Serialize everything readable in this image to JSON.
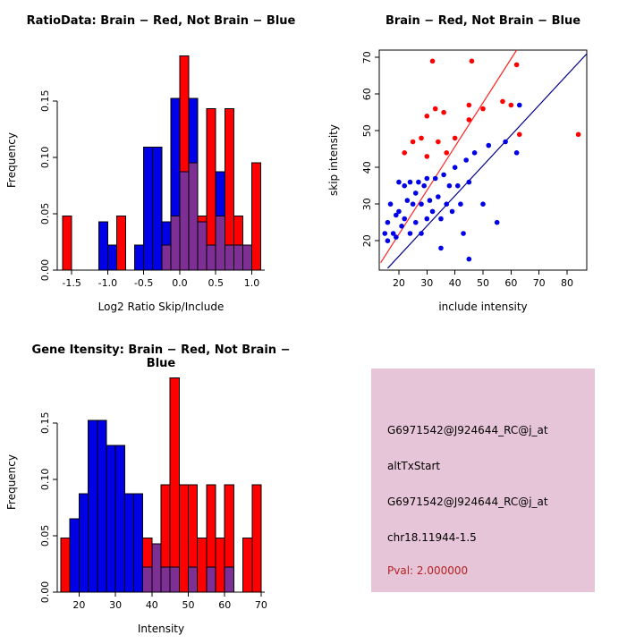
{
  "colors": {
    "red": "#FF0000",
    "blue": "#0000E6",
    "overlap_purple": "#7D2F93",
    "scatter_line_red": "#FF2222",
    "scatter_line_blue": "#00008B",
    "info_bg": "#E7C5D8",
    "pval_color": "#B22222",
    "axis": "#000000"
  },
  "chart_data": [
    {
      "type": "bar",
      "subtype": "overlaid-histogram",
      "title": "RatioData: Brain − Red, Not Brain − Blue",
      "xlabel": "Log2 Ratio Skip/Include",
      "ylabel": "Frequency",
      "bin_start": -1.625,
      "bin_width": 0.125,
      "series": [
        {
          "name": "Brain (red)",
          "values": [
            0.048,
            0,
            0,
            0,
            0,
            0,
            0.048,
            0,
            0,
            0,
            0,
            0.022,
            0.048,
            0.19,
            0.095,
            0.048,
            0.143,
            0.048,
            0.143,
            0.048,
            0.022,
            0.095
          ]
        },
        {
          "name": "Not Brain (blue)",
          "values": [
            0,
            0,
            0,
            0,
            0.043,
            0.022,
            0,
            0,
            0.022,
            0.109,
            0.109,
            0.043,
            0.152,
            0.087,
            0.152,
            0.043,
            0.022,
            0.087,
            0.022,
            0.022,
            0.022,
            0
          ]
        }
      ],
      "xticks": [
        -1.5,
        -1,
        -0.5,
        0,
        0.5,
        1
      ],
      "xtick_labels": [
        "-1.5",
        "-1.0",
        "-0.5",
        "0.0",
        "0.5",
        "1.0"
      ],
      "yticks": [
        0,
        0.05,
        0.1,
        0.15
      ],
      "ytick_labels": [
        "0.00",
        "0.05",
        "0.10",
        "0.15"
      ],
      "xlim": [
        -1.7,
        1.18
      ],
      "ylim": [
        0,
        0.195
      ],
      "grid": false
    },
    {
      "type": "scatter",
      "title": "Brain − Red, Not Brain − Blue",
      "xlabel": "include intensity",
      "ylabel": "skip intensity",
      "series": [
        {
          "name": "Brain (red)",
          "points": [
            [
              32,
              69
            ],
            [
              46,
              69
            ],
            [
              62,
              68
            ],
            [
              57,
              58
            ],
            [
              60,
              57
            ],
            [
              45,
              57
            ],
            [
              33,
              56
            ],
            [
              36,
              55
            ],
            [
              30,
              54
            ],
            [
              50,
              56
            ],
            [
              25,
              47
            ],
            [
              28,
              48
            ],
            [
              34,
              47
            ],
            [
              40,
              48
            ],
            [
              63,
              49
            ],
            [
              84,
              49
            ],
            [
              22,
              44
            ],
            [
              30,
              43
            ],
            [
              37,
              44
            ],
            [
              45,
              53
            ]
          ]
        },
        {
          "name": "Not Brain (blue)",
          "points": [
            [
              15,
              22
            ],
            [
              16,
              20
            ],
            [
              16,
              25
            ],
            [
              17,
              30
            ],
            [
              18,
              22
            ],
            [
              19,
              21
            ],
            [
              19,
              27
            ],
            [
              20,
              36
            ],
            [
              20,
              28
            ],
            [
              21,
              24
            ],
            [
              22,
              35
            ],
            [
              22,
              26
            ],
            [
              23,
              31
            ],
            [
              24,
              22
            ],
            [
              24,
              36
            ],
            [
              25,
              30
            ],
            [
              26,
              33
            ],
            [
              26,
              25
            ],
            [
              27,
              36
            ],
            [
              28,
              30
            ],
            [
              28,
              22
            ],
            [
              29,
              35
            ],
            [
              30,
              37
            ],
            [
              30,
              26
            ],
            [
              31,
              31
            ],
            [
              32,
              28
            ],
            [
              33,
              37
            ],
            [
              34,
              32
            ],
            [
              35,
              26
            ],
            [
              35,
              18
            ],
            [
              36,
              38
            ],
            [
              37,
              30
            ],
            [
              38,
              35
            ],
            [
              39,
              28
            ],
            [
              40,
              40
            ],
            [
              41,
              35
            ],
            [
              42,
              30
            ],
            [
              43,
              22
            ],
            [
              44,
              42
            ],
            [
              45,
              36
            ],
            [
              47,
              44
            ],
            [
              50,
              30
            ],
            [
              52,
              46
            ],
            [
              55,
              25
            ],
            [
              58,
              47
            ],
            [
              62,
              44
            ],
            [
              63,
              57
            ],
            [
              45,
              15
            ]
          ]
        }
      ],
      "lines": [
        {
          "name": "red-fit-line",
          "x1": 13.5,
          "y1": 14,
          "x2": 62,
          "y2": 72
        },
        {
          "name": "blue-fit-line",
          "x1": 16,
          "y1": 12.5,
          "x2": 87,
          "y2": 71
        }
      ],
      "xticks": [
        20,
        30,
        40,
        50,
        60,
        70,
        80
      ],
      "xtick_labels": [
        "20",
        "30",
        "40",
        "50",
        "60",
        "70",
        "80"
      ],
      "yticks": [
        20,
        30,
        40,
        50,
        60,
        70
      ],
      "ytick_labels": [
        "20",
        "30",
        "40",
        "50",
        "60",
        "70"
      ],
      "xlim": [
        13,
        87
      ],
      "ylim": [
        12,
        72
      ],
      "grid": false
    },
    {
      "type": "bar",
      "subtype": "overlaid-histogram",
      "title": "Gene Itensity: Brain − Red, Not Brain − Blue",
      "xlabel": "Intensity",
      "ylabel": "Frequency",
      "bin_start": 15,
      "bin_width": 2.5,
      "series": [
        {
          "name": "Brain (red)",
          "values": [
            0.048,
            0,
            0,
            0,
            0,
            0,
            0,
            0,
            0,
            0.048,
            0.043,
            0.095,
            0.19,
            0.095,
            0.095,
            0.048,
            0.095,
            0.048,
            0.095,
            0,
            0.048,
            0.095
          ]
        },
        {
          "name": "Not Brain (blue)",
          "values": [
            0,
            0.065,
            0.087,
            0.152,
            0.152,
            0.13,
            0.13,
            0.087,
            0.087,
            0.022,
            0.043,
            0.022,
            0.022,
            0,
            0.022,
            0,
            0.022,
            0,
            0.022,
            0,
            0,
            0
          ]
        }
      ],
      "xticks": [
        20,
        30,
        40,
        50,
        60,
        70
      ],
      "xtick_labels": [
        "20",
        "30",
        "40",
        "50",
        "60",
        "70"
      ],
      "yticks": [
        0,
        0.05,
        0.1,
        0.15
      ],
      "ytick_labels": [
        "0.00",
        "0.05",
        "0.10",
        "0.15"
      ],
      "xlim": [
        14,
        71
      ],
      "ylim": [
        0,
        0.195
      ],
      "grid": false
    }
  ],
  "info_box": {
    "lines": [
      "G6971542@J924644_RC@j_at",
      "altTxStart",
      "G6971542@J924644_RC@j_at",
      "chr18.11944-1.5",
      "Pval: 2.000000"
    ]
  }
}
